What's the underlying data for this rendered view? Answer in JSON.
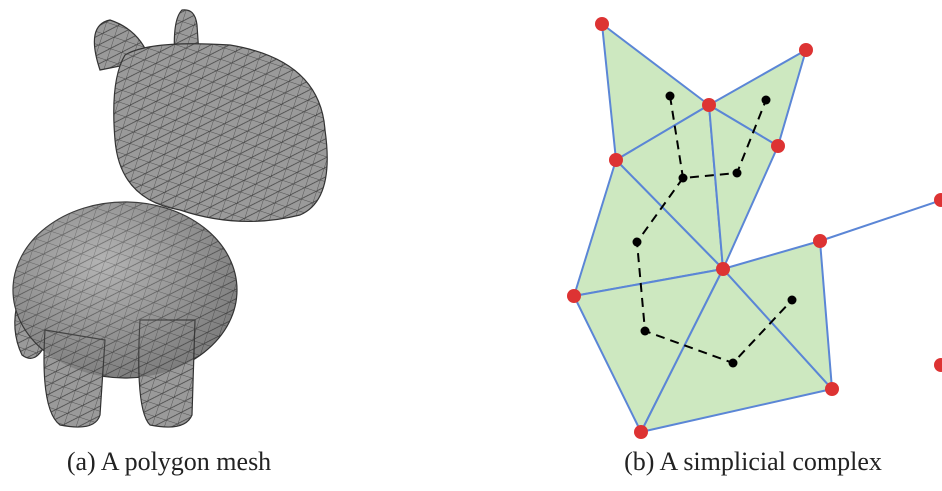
{
  "figure": {
    "panels": [
      {
        "caption": "(a) A polygon mesh"
      },
      {
        "caption": "(b) A simplicial complex"
      }
    ]
  }
}
